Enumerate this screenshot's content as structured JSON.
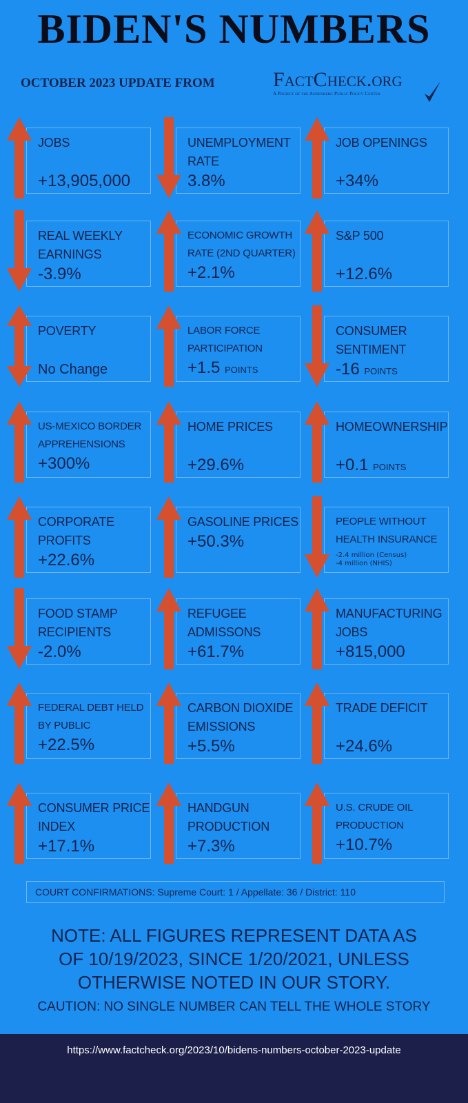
{
  "title": "BIDEN'S NUMBERS",
  "subtitle": "OCTOBER 2023 UPDATE FROM",
  "logo": {
    "name": "FactCheck.org",
    "tagline": "A Project of the Annenberg Public Policy Center"
  },
  "colors": {
    "background": "#1c8ff0",
    "arrow": "#d4502f",
    "text": "#17244f",
    "footer": "#1b1f49"
  },
  "metrics": [
    {
      "title": "JOBS",
      "value": "+13,905,000",
      "direction": "up"
    },
    {
      "title": "UNEMPLOYMENT RATE",
      "value": "3.8%",
      "direction": "down"
    },
    {
      "title": "JOB OPENINGS",
      "value": "+34%",
      "direction": "up"
    },
    {
      "title": "REAL WEEKLY EARNINGS",
      "value": "-3.9%",
      "direction": "down"
    },
    {
      "title": "ECONOMIC GROWTH RATE (2ND QUARTER)",
      "value": "+2.1%",
      "direction": "up"
    },
    {
      "title": "S&P 500",
      "value": "+12.6%",
      "direction": "up"
    },
    {
      "title": "POVERTY",
      "value": "No Change",
      "direction": "both"
    },
    {
      "title": "LABOR FORCE PARTICIPATION",
      "value": "+1.5",
      "unit": "POINTS",
      "direction": "up"
    },
    {
      "title": "CONSUMER SENTIMENT",
      "value": "-16",
      "unit": "POINTS",
      "direction": "down"
    },
    {
      "title": "US-MEXICO BORDER APPREHENSIONS",
      "value": "+300%",
      "direction": "up"
    },
    {
      "title": "HOME PRICES",
      "value": "+29.6%",
      "direction": "up"
    },
    {
      "title": "HOMEOWNERSHIP",
      "value": "+0.1",
      "unit": "POINTS",
      "direction": "up"
    },
    {
      "title": "CORPORATE PROFITS",
      "value": "+22.6%",
      "direction": "up"
    },
    {
      "title": "GASOLINE PRICES",
      "value": "+50.3%",
      "direction": "up"
    },
    {
      "title": "PEOPLE WITHOUT HEALTH INSURANCE",
      "value": "",
      "notes": [
        "-2.4 million (Census)",
        "-4 million (NHIS)"
      ],
      "direction": "down"
    },
    {
      "title": "FOOD STAMP RECIPIENTS",
      "value": "-2.0%",
      "direction": "down"
    },
    {
      "title": "REFUGEE ADMISSONS",
      "value": "+61.7%",
      "direction": "up"
    },
    {
      "title": "MANUFACTURING JOBS",
      "value": "+815,000",
      "direction": "up"
    },
    {
      "title": "FEDERAL DEBT HELD BY PUBLIC",
      "value": "+22.5%",
      "direction": "up"
    },
    {
      "title": "CARBON DIOXIDE EMISSIONS",
      "value": "+5.5%",
      "direction": "up"
    },
    {
      "title": "TRADE DEFICIT",
      "value": "+24.6%",
      "direction": "up"
    },
    {
      "title": "CONSUMER PRICE INDEX",
      "value": "+17.1%",
      "direction": "up"
    },
    {
      "title": "HANDGUN PRODUCTION",
      "value": "+7.3%",
      "direction": "up"
    },
    {
      "title": "U.S. CRUDE OIL PRODUCTION",
      "value": "+10.7%",
      "direction": "up"
    }
  ],
  "court": "COURT CONFIRMATIONS:  Supreme Court: 1 / Appellate: 36 / District: 110",
  "note": "NOTE:  ALL FIGURES REPRESENT DATA AS OF 10/19/2023, SINCE 1/20/2021, UNLESS OTHERWISE NOTED IN OUR STORY.",
  "caution": "CAUTION: NO SINGLE NUMBER CAN TELL THE WHOLE STORY",
  "footer_url": "https://www.factcheck.org/2023/10/bidens-numbers-october-2023-update"
}
